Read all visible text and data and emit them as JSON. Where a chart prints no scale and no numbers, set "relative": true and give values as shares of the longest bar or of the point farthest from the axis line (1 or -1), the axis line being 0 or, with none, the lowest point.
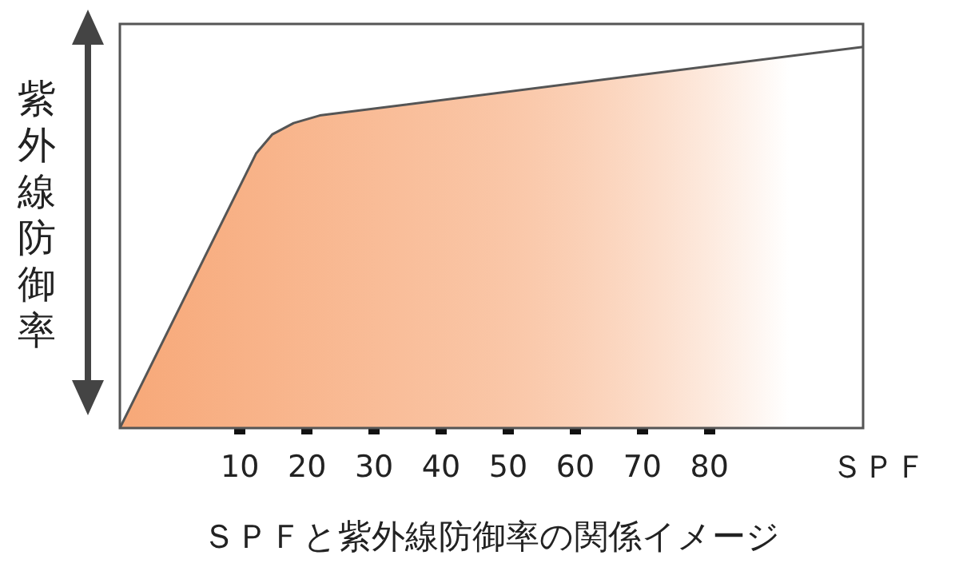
{
  "chart_data": {
    "type": "area",
    "title": "ＳＰＦと紫外線防御率の関係イメージ",
    "xlabel": "ＳＰＦ",
    "ylabel": "紫外線防御率",
    "relative": true,
    "x": [
      -7.9,
      12.4,
      14.8,
      18,
      21.9,
      102.9
    ],
    "series": [
      {
        "color": "#f7a878",
        "values": [
          0,
          0.72,
          0.77,
          0.8,
          0.82,
          1
        ]
      }
    ],
    "xlim": [
      -7.9,
      102.9
    ],
    "xticks": [
      10,
      20,
      30,
      40,
      50,
      60,
      70,
      80
    ],
    "grid": false,
    "legend": false,
    "marker": "none",
    "line_style": "solid"
  }
}
